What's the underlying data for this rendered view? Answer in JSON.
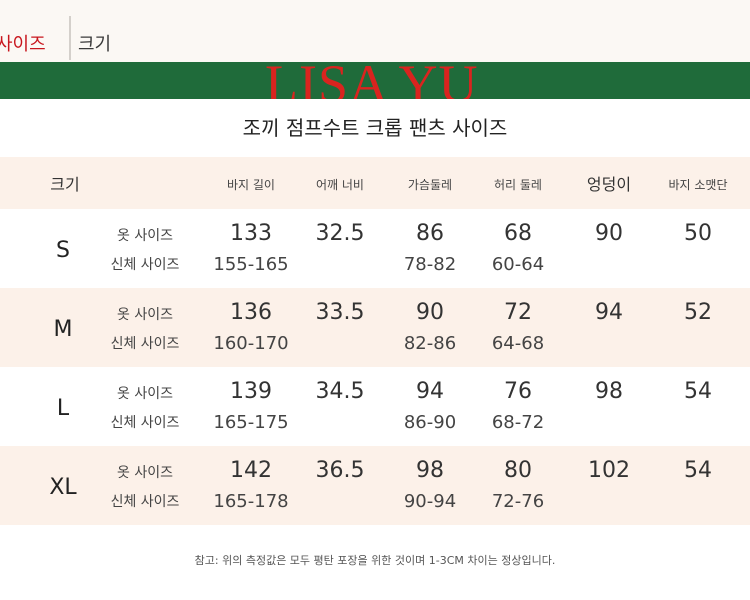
{
  "header": {
    "tab_active_label": "사이즈",
    "tab_size_label": "크기"
  },
  "banner": {
    "brand_text": "LISA YU",
    "background_color": "#1f6b3a",
    "brand_color": "#d9241f"
  },
  "product_title": "조끼 점프수트 크롭 팬츠 사이즈",
  "table": {
    "columns": [
      "크기",
      "바지 길이",
      "어깨 너비",
      "가슴둘레",
      "허리 둘레",
      "엉덩이",
      "바지 소맷단"
    ],
    "row_labels": {
      "garment": "옷 사이즈",
      "body": "신체 사이즈"
    },
    "rows": [
      {
        "size": "S",
        "pants_length": "133",
        "pants_length_body": "155-165",
        "shoulder": "32.5",
        "chest": "86",
        "chest_body": "78-82",
        "waist": "68",
        "waist_body": "60-64",
        "hip": "90",
        "hem": "50"
      },
      {
        "size": "M",
        "pants_length": "136",
        "pants_length_body": "160-170",
        "shoulder": "33.5",
        "chest": "90",
        "chest_body": "82-86",
        "waist": "72",
        "waist_body": "64-68",
        "hip": "94",
        "hem": "52"
      },
      {
        "size": "L",
        "pants_length": "139",
        "pants_length_body": "165-175",
        "shoulder": "34.5",
        "chest": "94",
        "chest_body": "86-90",
        "waist": "76",
        "waist_body": "68-72",
        "hip": "98",
        "hem": "54"
      },
      {
        "size": "XL",
        "pants_length": "142",
        "pants_length_body": "165-178",
        "shoulder": "36.5",
        "chest": "98",
        "chest_body": "90-94",
        "waist": "80",
        "waist_body": "72-76",
        "hip": "102",
        "hem": "54"
      }
    ]
  },
  "footnote": "참고: 위의 측정값은 모두 평탄 포장을 위한 것이며 1-3CM 차이는 정상입니다."
}
